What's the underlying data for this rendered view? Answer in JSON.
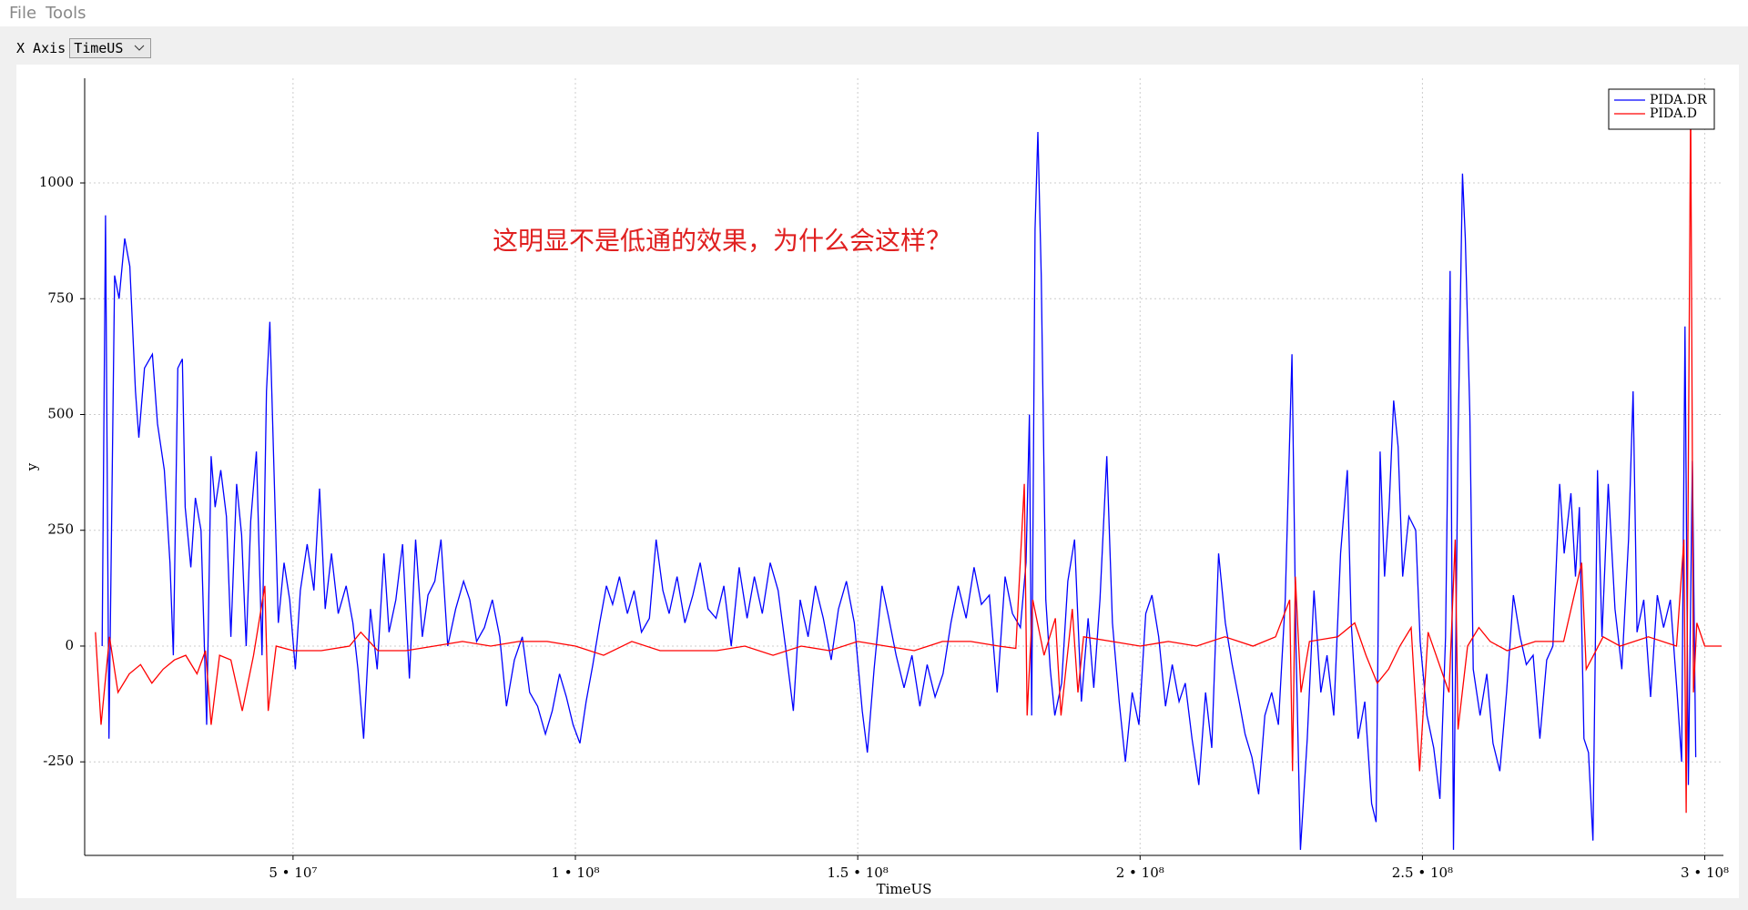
{
  "menu": [
    "File",
    "Tools"
  ],
  "toolbar": {
    "label": "X Axis",
    "select": "TimeUS"
  },
  "chart_data": {
    "type": "line",
    "annotation": "这明显不是低通的效果，为什么会这样？",
    "x_label": "TimeUS",
    "y_label": "y",
    "xlim": [
      13100000,
      303300000
    ],
    "ylim": [
      -452,
      1226
    ],
    "xticks": [
      {
        "value": 50000000,
        "label": "5 • 10⁷"
      },
      {
        "value": 100000000,
        "label": "1 • 10⁸"
      },
      {
        "value": 150000000,
        "label": "1.5 • 10⁸"
      },
      {
        "value": 200000000,
        "label": "2 • 10⁸"
      },
      {
        "value": 250000000,
        "label": "2.5 • 10⁸"
      },
      {
        "value": 300000000,
        "label": "3 • 10⁸"
      }
    ],
    "yticks": [
      -250,
      0,
      250,
      500,
      750,
      1000
    ],
    "grid": true,
    "legend": "upper right",
    "series": [
      {
        "name": "PIDA.DR",
        "color": "#0000ff",
        "x": [
          16200000.0,
          16800000.0,
          17400000.0,
          18400000.0,
          19200000.0,
          20200000.0,
          21100000.0,
          22100000.0,
          22700000.0,
          23700000.0,
          25100000.0,
          26000000.0,
          27200000.0,
          28200000.0,
          28800000.0,
          29600000.0,
          30400000.0,
          30900000.0,
          31900000.0,
          32700000.0,
          33700000.0,
          34700000.0,
          35500000.0,
          36200000.0,
          37200000.0,
          38200000.0,
          39000000.0,
          40000000.0,
          40900000.0,
          41700000.0,
          42500000.0,
          43500000.0,
          44500000.0,
          45300000.0,
          45900000.0,
          46600000.0,
          47400000.0,
          48400000.0,
          49400000.0,
          50400000.0,
          51300000.0,
          52500000.0,
          53700000.0,
          54700000.0,
          55700000.0,
          56800000.0,
          58000000.0,
          59400000.0,
          60600000.0,
          61500000.0,
          62500000.0,
          63700000.0,
          64900000.0,
          66100000.0,
          67000000.0,
          68200000.0,
          69400000.0,
          70600000.0,
          71700000.0,
          72900000.0,
          73900000.0,
          75100000.0,
          76200000.0,
          77400000.0,
          78800000.0,
          80200000.0,
          81300000.0,
          82500000.0,
          83900000.0,
          85300000.0,
          86600000.0,
          87800000.0,
          89200000.0,
          90600000.0,
          91900000.0,
          93300000.0,
          94700000.0,
          95900000.0,
          97200000.0,
          98400000.0,
          99600000.0,
          100800000.0,
          101900000.0,
          103100000.0,
          104300000.0,
          105500000.0,
          106600000.0,
          107800000.0,
          109200000.0,
          110400000.0,
          111700000.0,
          113100000.0,
          114300000.0,
          115500000.0,
          116600000.0,
          118000000.0,
          119400000.0,
          120800000.0,
          122100000.0,
          123500000.0,
          124900000.0,
          126300000.0,
          127600000.0,
          129000000.0,
          130400000.0,
          131700000.0,
          133100000.0,
          134500000.0,
          135900000.0,
          137200000.0,
          138600000.0,
          139800000.0,
          141200000.0,
          142500000.0,
          143900000.0,
          145300000.0,
          146600000.0,
          148000000.0,
          149400000.0,
          150800000.0,
          151700000.0,
          152900000.0,
          154300000.0,
          155500000.0,
          156800000.0,
          158200000.0,
          159600000.0,
          161000000.0,
          162300000.0,
          163700000.0,
          165100000.0,
          166500000.0,
          167800000.0,
          169200000.0,
          170600000.0,
          171900000.0,
          173300000.0,
          174700000.0,
          176100000.0,
          177400000.0,
          178800000.0,
          179800000.0,
          180400000.0,
          180800000.0,
          181400000.0,
          181900000.0,
          182500000.0,
          183300000.0,
          184100000.0,
          184900000.0,
          186100000.0,
          187200000.0,
          188400000.0,
          189600000.0,
          190800000.0,
          191800000.0,
          192900000.0,
          194100000.0,
          195100000.0,
          196300000.0,
          197400000.0,
          198600000.0,
          199800000.0,
          201000000.0,
          202100000.0,
          203300000.0,
          204500000.0,
          205700000.0,
          206900000.0,
          208000000.0,
          209200000.0,
          210400000.0,
          211600000.0,
          212700000.0,
          213900000.0,
          215100000.0,
          216300000.0,
          217400000.0,
          218600000.0,
          219800000.0,
          221000000.0,
          222100000.0,
          223300000.0,
          224500000.0,
          225700000.0,
          226900000.0,
          227600000.0,
          228400000.0,
          229600000.0,
          230800000.0,
          232000000.0,
          233100000.0,
          234300000.0,
          235500000.0,
          236700000.0,
          237400000.0,
          238600000.0,
          239800000.0,
          241000000.0,
          241800000.0,
          242500000.0,
          243300000.0,
          244100000.0,
          244900000.0,
          245700000.0,
          246500000.0,
          247600000.0,
          248800000.0,
          249600000.0,
          250800000.0,
          252000000.0,
          253100000.0,
          254100000.0,
          254900000.0,
          255500000.0,
          256300000.0,
          257100000.0,
          257600000.0,
          258400000.0,
          259000000.0,
          260200000.0,
          261400000.0,
          262500000.0,
          263700000.0,
          264900000.0,
          266100000.0,
          267300000.0,
          268400000.0,
          269600000.0,
          270800000.0,
          272000000.0,
          273100000.0,
          274300000.0,
          275100000.0,
          276300000.0,
          277100000.0,
          277800000.0,
          278600000.0,
          279400000.0,
          280200000.0,
          281000000.0,
          281800000.0,
          282900000.0,
          284100000.0,
          285300000.0,
          286500000.0,
          287300000.0,
          288000000.0,
          289200000.0,
          290400000.0,
          291600000.0,
          292700000.0,
          293900000.0,
          295100000.0,
          295900000.0,
          296500000.0,
          297100000.0,
          297800000.0,
          298400000.0
        ],
        "values": [
          0,
          930,
          -200,
          800,
          750,
          880,
          820,
          550,
          450,
          600,
          630,
          480,
          380,
          180,
          -20,
          600,
          620,
          300,
          170,
          320,
          250,
          -170,
          410,
          300,
          380,
          280,
          20,
          350,
          240,
          0,
          270,
          420,
          -20,
          550,
          700,
          390,
          50,
          180,
          100,
          -50,
          120,
          220,
          120,
          340,
          80,
          200,
          70,
          130,
          50,
          -50,
          -200,
          80,
          -50,
          200,
          30,
          100,
          220,
          -70,
          230,
          20,
          110,
          140,
          230,
          0,
          80,
          140,
          100,
          10,
          40,
          100,
          20,
          -130,
          -30,
          20,
          -100,
          -130,
          -190,
          -140,
          -60,
          -110,
          -170,
          -210,
          -120,
          -40,
          50,
          130,
          90,
          150,
          70,
          120,
          30,
          60,
          230,
          120,
          70,
          150,
          50,
          110,
          180,
          80,
          60,
          130,
          0,
          170,
          60,
          150,
          70,
          180,
          120,
          0,
          -140,
          100,
          20,
          130,
          60,
          -30,
          80,
          140,
          50,
          -140,
          -230,
          -50,
          130,
          60,
          -20,
          -90,
          -20,
          -130,
          -40,
          -110,
          -60,
          50,
          130,
          60,
          170,
          90,
          110,
          -100,
          150,
          70,
          40,
          180,
          500,
          -150,
          900,
          1110,
          800,
          100,
          -50,
          -150,
          -80,
          140,
          230,
          -120,
          60,
          -90,
          100,
          410,
          50,
          -120,
          -250,
          -100,
          -170,
          70,
          110,
          20,
          -130,
          -40,
          -120,
          -80,
          -200,
          -300,
          -100,
          -220,
          200,
          50,
          -40,
          -110,
          -190,
          -240,
          -320,
          -150,
          -100,
          -170,
          100,
          630,
          0,
          -440,
          -200,
          120,
          -100,
          -20,
          -150,
          200,
          380,
          50,
          -200,
          -120,
          -340,
          -380,
          420,
          150,
          300,
          530,
          430,
          150,
          280,
          250,
          10,
          -150,
          -220,
          -330,
          20,
          810,
          -440,
          440,
          1020,
          880,
          500,
          -50,
          -150,
          -60,
          -210,
          -270,
          -100,
          110,
          20,
          -40,
          -20,
          -200,
          -30,
          0,
          350,
          200,
          330,
          150,
          300,
          -200,
          -230,
          -420,
          380,
          20,
          350,
          80,
          -50,
          230,
          550,
          30,
          100,
          -110,
          110,
          40,
          100,
          -100,
          -250,
          690,
          -300,
          400,
          -240
        ]
      },
      {
        "name": "PIDA.D",
        "color": "#ff0000",
        "x": [
          15000000.0,
          16000000.0,
          17500000.0,
          19000000.0,
          21000000.0,
          23000000.0,
          25000000.0,
          27000000.0,
          29000000.0,
          31000000.0,
          33000000.0,
          34500000.0,
          35500000.0,
          37000000.0,
          39000000.0,
          41000000.0,
          43000000.0,
          45000000.0,
          45600000.0,
          47000000.0,
          50000000.0,
          55000000.0,
          60000000.0,
          62000000.0,
          65000000.0,
          70000000.0,
          75000000.0,
          80000000.0,
          85000000.0,
          90000000.0,
          95000000.0,
          100000000.0,
          105000000.0,
          110000000.0,
          115000000.0,
          120000000.0,
          125000000.0,
          130000000.0,
          135000000.0,
          140000000.0,
          145000000.0,
          150000000.0,
          155000000.0,
          160000000.0,
          165000000.0,
          170000000.0,
          175000000.0,
          178000000.0,
          179500000.0,
          180000000.0,
          181000000.0,
          183000000.0,
          185000000.0,
          186000000.0,
          188000000.0,
          189000000.0,
          190000000.0,
          195000000.0,
          200000000.0,
          205000000.0,
          210000000.0,
          215000000.0,
          220000000.0,
          224000000.0,
          226500000.0,
          227000000.0,
          227500000.0,
          228500000.0,
          230000000.0,
          235000000.0,
          238000000.0,
          240000000.0,
          242000000.0,
          244000000.0,
          246000000.0,
          248000000.0,
          249500000.0,
          251000000.0,
          254700000.0,
          255800000.0,
          256300000.0,
          258000000.0,
          260000000.0,
          262000000.0,
          265000000.0,
          270000000.0,
          275000000.0,
          278200000.0,
          279000000.0,
          282000000.0,
          285000000.0,
          290000000.0,
          295000000.0,
          296300000.0,
          296700000.0,
          297500000.0,
          298000000.0,
          298600000.0,
          300000000.0,
          303000000.0
        ],
        "values": [
          30,
          -170,
          20,
          -100,
          -60,
          -40,
          -80,
          -50,
          -30,
          -20,
          -60,
          -10,
          -170,
          -20,
          -30,
          -140,
          -20,
          130,
          -140,
          0,
          -10,
          -10,
          0,
          30,
          -10,
          -10,
          0,
          10,
          0,
          10,
          10,
          0,
          -20,
          10,
          -10,
          -10,
          -10,
          0,
          -20,
          0,
          -10,
          10,
          0,
          -10,
          10,
          10,
          0,
          -5,
          350,
          -150,
          100,
          -20,
          60,
          -150,
          80,
          -100,
          20,
          10,
          0,
          10,
          0,
          20,
          0,
          20,
          100,
          -270,
          150,
          -100,
          10,
          20,
          50,
          -20,
          -80,
          -50,
          0,
          40,
          -270,
          30,
          -100,
          230,
          -180,
          0,
          40,
          10,
          -10,
          10,
          10,
          180,
          -50,
          20,
          0,
          20,
          0,
          230,
          -360,
          1180,
          -100,
          50,
          0,
          0
        ]
      }
    ]
  }
}
